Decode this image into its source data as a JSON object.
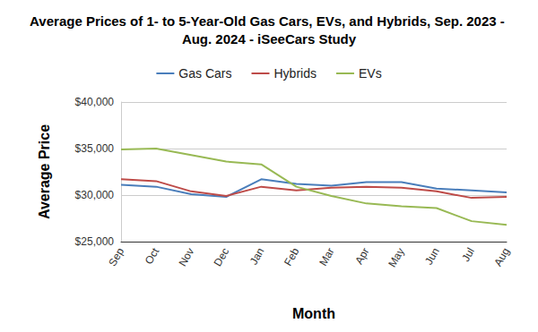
{
  "chart_data": {
    "type": "line",
    "title": "Average Prices of 1- to 5-Year-Old Gas Cars, EVs, and Hybrids, Sep. 2023 - Aug. 2024 - iSeeCars Study",
    "x_label": "Month",
    "y_label": "Average Price",
    "categories": [
      "Sep",
      "Oct",
      "Nov",
      "Dec",
      "Jan",
      "Feb",
      "Mar",
      "Apr",
      "May",
      "Jun",
      "Jul",
      "Aug"
    ],
    "series": [
      {
        "name": "Gas Cars",
        "color": "#4a7ebb",
        "values": [
          31100,
          30900,
          30100,
          29800,
          31700,
          31200,
          31000,
          31400,
          31400,
          30700,
          30500,
          30300
        ]
      },
      {
        "name": "Hybrids",
        "color": "#be4b48",
        "values": [
          31700,
          31500,
          30400,
          29900,
          30900,
          30500,
          30800,
          30900,
          30800,
          30400,
          29700,
          29800
        ]
      },
      {
        "name": "EVs",
        "color": "#98b954",
        "values": [
          34900,
          35000,
          34300,
          33600,
          33300,
          30900,
          29900,
          29100,
          28800,
          28600,
          27200,
          26800
        ]
      }
    ],
    "ylim": [
      25000,
      40000
    ],
    "yticks": [
      {
        "value": 25000,
        "label": "$25,000"
      },
      {
        "value": 30000,
        "label": "$30,000"
      },
      {
        "value": 35000,
        "label": "$35,000"
      },
      {
        "value": 40000,
        "label": "$40,000"
      }
    ],
    "grid": true,
    "legend": "top"
  }
}
